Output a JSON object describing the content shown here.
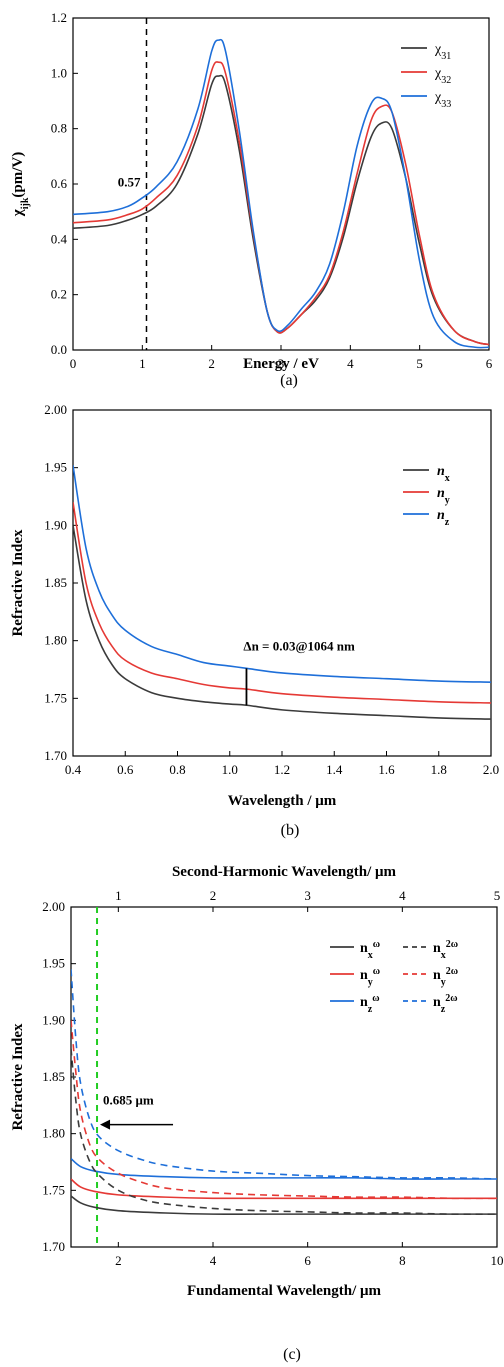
{
  "chart_data": [
    {
      "type": "line",
      "panel": "(a)",
      "xlabel": "Energy / eV",
      "ylabel": "χijk(pm/V)",
      "xlim": [
        0,
        6
      ],
      "ylim": [
        0.0,
        1.2
      ],
      "xticks": [
        "0",
        "1",
        "2",
        "3",
        "4",
        "5",
        "6"
      ],
      "yticks": [
        "0.0",
        "0.2",
        "0.4",
        "0.6",
        "0.8",
        "1.0",
        "1.2"
      ],
      "legend_position": "top-right",
      "annotations": [
        {
          "text": "0.57",
          "x": 1.06,
          "y": 0.57
        }
      ],
      "vline": {
        "x": 1.06,
        "style": "dashed",
        "color": "#000000"
      },
      "series": [
        {
          "name": "χ31",
          "color": "#3b3b3b",
          "x": [
            0,
            0.5,
            0.8,
            1.0,
            1.2,
            1.5,
            1.8,
            2.0,
            2.1,
            2.2,
            2.4,
            2.6,
            2.8,
            2.95,
            3.1,
            3.3,
            3.5,
            3.7,
            3.9,
            4.1,
            4.3,
            4.45,
            4.6,
            4.8,
            5.0,
            5.2,
            5.5,
            5.8,
            6.0
          ],
          "y": [
            0.44,
            0.45,
            0.47,
            0.49,
            0.52,
            0.6,
            0.78,
            0.96,
            0.99,
            0.96,
            0.72,
            0.4,
            0.14,
            0.065,
            0.08,
            0.13,
            0.18,
            0.26,
            0.41,
            0.61,
            0.77,
            0.82,
            0.8,
            0.62,
            0.38,
            0.19,
            0.07,
            0.03,
            0.02
          ]
        },
        {
          "name": "χ32",
          "color": "#e53935",
          "x": [
            0,
            0.5,
            0.8,
            1.0,
            1.2,
            1.5,
            1.8,
            2.0,
            2.1,
            2.2,
            2.4,
            2.6,
            2.8,
            2.95,
            3.1,
            3.3,
            3.5,
            3.7,
            3.9,
            4.1,
            4.3,
            4.45,
            4.6,
            4.8,
            5.0,
            5.2,
            5.5,
            5.8,
            6.0
          ],
          "y": [
            0.46,
            0.47,
            0.49,
            0.51,
            0.55,
            0.63,
            0.81,
            1.01,
            1.04,
            1.0,
            0.75,
            0.42,
            0.14,
            0.065,
            0.08,
            0.13,
            0.19,
            0.27,
            0.43,
            0.64,
            0.83,
            0.88,
            0.86,
            0.67,
            0.41,
            0.2,
            0.07,
            0.03,
            0.02
          ]
        },
        {
          "name": "χ33",
          "color": "#1e6fd9",
          "x": [
            0,
            0.5,
            0.8,
            1.0,
            1.2,
            1.5,
            1.8,
            2.0,
            2.1,
            2.2,
            2.4,
            2.6,
            2.8,
            2.95,
            3.1,
            3.3,
            3.5,
            3.7,
            3.9,
            4.1,
            4.3,
            4.45,
            4.6,
            4.8,
            5.0,
            5.2,
            5.5,
            5.8,
            6.0
          ],
          "y": [
            0.49,
            0.5,
            0.52,
            0.55,
            0.59,
            0.68,
            0.87,
            1.08,
            1.12,
            1.08,
            0.79,
            0.43,
            0.14,
            0.07,
            0.09,
            0.15,
            0.21,
            0.31,
            0.5,
            0.74,
            0.89,
            0.91,
            0.86,
            0.62,
            0.32,
            0.12,
            0.03,
            0.01,
            0.01
          ]
        }
      ]
    },
    {
      "type": "line",
      "panel": "(b)",
      "xlabel": "Wavelength / μm",
      "ylabel": "Refractive Index",
      "xlim": [
        0.4,
        2.0
      ],
      "ylim": [
        1.7,
        2.0
      ],
      "xticks": [
        "0.4",
        "0.6",
        "0.8",
        "1.0",
        "1.2",
        "1.4",
        "1.6",
        "1.8",
        "2.0"
      ],
      "yticks": [
        "1.70",
        "1.75",
        "1.80",
        "1.85",
        "1.90",
        "1.95",
        "2.00"
      ],
      "legend_position": "top-right",
      "annotations": [
        {
          "text": "Δn = 0.03@1064 nm",
          "x": 1.06,
          "y": 1.795
        }
      ],
      "marker_line": {
        "x": 1.064,
        "y1": 1.744,
        "y2": 1.776
      },
      "series": [
        {
          "name": "nx",
          "color": "#3b3b3b",
          "x": [
            0.4,
            0.45,
            0.5,
            0.55,
            0.6,
            0.7,
            0.8,
            0.9,
            1.0,
            1.064,
            1.2,
            1.4,
            1.6,
            1.8,
            2.0
          ],
          "y": [
            1.9,
            1.835,
            1.8,
            1.779,
            1.767,
            1.755,
            1.75,
            1.747,
            1.745,
            1.744,
            1.74,
            1.737,
            1.735,
            1.733,
            1.732
          ]
        },
        {
          "name": "ny",
          "color": "#e53935",
          "x": [
            0.4,
            0.45,
            0.5,
            0.55,
            0.6,
            0.7,
            0.8,
            0.9,
            1.0,
            1.064,
            1.2,
            1.4,
            1.6,
            1.8,
            2.0
          ],
          "y": [
            1.92,
            1.85,
            1.815,
            1.795,
            1.783,
            1.772,
            1.767,
            1.762,
            1.759,
            1.758,
            1.754,
            1.751,
            1.749,
            1.747,
            1.746
          ]
        },
        {
          "name": "nz",
          "color": "#1e6fd9",
          "x": [
            0.4,
            0.45,
            0.5,
            0.55,
            0.6,
            0.7,
            0.8,
            0.9,
            1.0,
            1.064,
            1.2,
            1.4,
            1.6,
            1.8,
            2.0
          ],
          "y": [
            1.952,
            1.88,
            1.843,
            1.822,
            1.809,
            1.795,
            1.788,
            1.781,
            1.778,
            1.776,
            1.772,
            1.769,
            1.767,
            1.765,
            1.764
          ]
        }
      ]
    },
    {
      "type": "line",
      "panel": "(c)",
      "xlabel": "Fundamental Wavelength/ μm",
      "x2label": "Second-Harmonic Wavelength/ μm",
      "ylabel": "Refractive Index",
      "xlim": [
        1,
        10
      ],
      "ylim": [
        1.7,
        2.0
      ],
      "xticks": [
        "2",
        "4",
        "6",
        "8",
        "10"
      ],
      "x2ticks": [
        "1",
        "2",
        "3",
        "4",
        "5"
      ],
      "yticks": [
        "1.70",
        "1.75",
        "1.80",
        "1.85",
        "1.90",
        "1.95",
        "2.00"
      ],
      "legend_position": "top-right",
      "annotations": [
        {
          "text": "0.685 μm",
          "x": 1.55,
          "y": 1.83
        }
      ],
      "vline": {
        "x": 1.55,
        "style": "dashed",
        "color": "#22cc22"
      },
      "series": [
        {
          "name": "nxω",
          "color": "#3b3b3b",
          "dash": false,
          "x": [
            1.0,
            1.2,
            1.5,
            2,
            3,
            4,
            5,
            6,
            7,
            8,
            9,
            10
          ],
          "y": [
            1.745,
            1.739,
            1.735,
            1.732,
            1.73,
            1.729,
            1.729,
            1.729,
            1.729,
            1.729,
            1.729,
            1.729
          ]
        },
        {
          "name": "nyω",
          "color": "#e53935",
          "dash": false,
          "x": [
            1.0,
            1.2,
            1.5,
            2,
            3,
            4,
            5,
            6,
            7,
            8,
            9,
            10
          ],
          "y": [
            1.76,
            1.753,
            1.749,
            1.746,
            1.744,
            1.743,
            1.743,
            1.743,
            1.743,
            1.743,
            1.743,
            1.743
          ]
        },
        {
          "name": "nzω",
          "color": "#1e6fd9",
          "dash": false,
          "x": [
            1.0,
            1.2,
            1.5,
            2,
            3,
            4,
            5,
            6,
            7,
            8,
            9,
            10
          ],
          "y": [
            1.778,
            1.771,
            1.767,
            1.764,
            1.762,
            1.761,
            1.761,
            1.761,
            1.761,
            1.76,
            1.76,
            1.76
          ]
        },
        {
          "name": "nx2ω",
          "color": "#3b3b3b",
          "dash": true,
          "x": [
            1.0,
            1.1,
            1.2,
            1.4,
            1.6,
            2.0,
            2.5,
            3,
            4,
            5,
            6,
            7,
            8,
            9,
            10
          ],
          "y": [
            1.875,
            1.83,
            1.8,
            1.775,
            1.763,
            1.75,
            1.742,
            1.738,
            1.734,
            1.732,
            1.731,
            1.73,
            1.73,
            1.729,
            1.729
          ]
        },
        {
          "name": "ny2ω",
          "color": "#e53935",
          "dash": true,
          "x": [
            1.0,
            1.1,
            1.2,
            1.4,
            1.6,
            2.0,
            2.5,
            3,
            4,
            5,
            6,
            7,
            8,
            9,
            10
          ],
          "y": [
            1.9,
            1.855,
            1.82,
            1.79,
            1.777,
            1.765,
            1.757,
            1.752,
            1.748,
            1.746,
            1.745,
            1.744,
            1.744,
            1.743,
            1.743
          ]
        },
        {
          "name": "nz2ω",
          "color": "#1e6fd9",
          "dash": true,
          "x": [
            1.0,
            1.1,
            1.2,
            1.4,
            1.6,
            2.0,
            2.5,
            3,
            4,
            5,
            6,
            7,
            8,
            9,
            10
          ],
          "y": [
            1.945,
            1.885,
            1.845,
            1.812,
            1.797,
            1.785,
            1.777,
            1.772,
            1.767,
            1.765,
            1.763,
            1.762,
            1.761,
            1.761,
            1.76
          ]
        }
      ]
    }
  ]
}
